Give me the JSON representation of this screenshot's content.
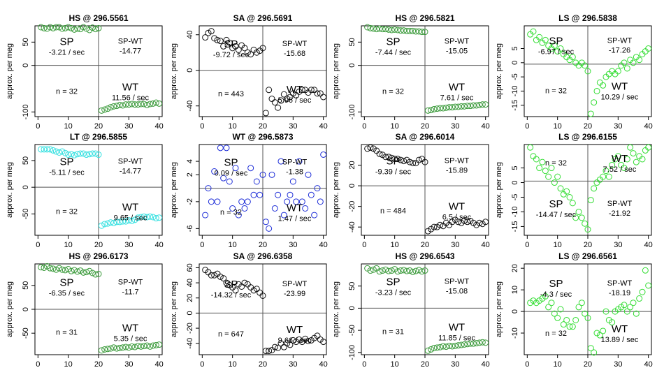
{
  "figure": {
    "ylabel": "approx. per meg"
  },
  "colors": {
    "green": "#3a9a3a",
    "cyan": "#33e0e0",
    "blue": "#1f2fd8",
    "black": "#111111",
    "lightgreen": "#33dd33",
    "axis": "#000000",
    "line": "#555555"
  },
  "chart_data": [
    {
      "type": "scatter",
      "title": "HS @ 296.5561",
      "color": "green",
      "ylim": [
        -110,
        85
      ],
      "xlim": [
        -1,
        41
      ],
      "yticks": [
        50,
        0,
        -100
      ],
      "xticks": [
        0,
        10,
        20,
        30,
        40
      ],
      "split_y": 0,
      "sp_label": "SP",
      "sp_rate": "-3.21 / sec",
      "spwt_label": "SP-WT",
      "spwt_value": "-14.77",
      "wt_label": "WT",
      "wt_rate": "11.56 / sec",
      "n_label": "n = 32",
      "sp_y": [
        82,
        80,
        79,
        82,
        80,
        82,
        82,
        79,
        80,
        82,
        80,
        77,
        79,
        78,
        82,
        79,
        76,
        81,
        78,
        80
      ],
      "wt_y": [
        -97,
        -95,
        -93,
        -90,
        -88,
        -87,
        -85,
        -86,
        -84,
        -84,
        -83,
        -84,
        -84,
        -83,
        -83,
        -85,
        -83,
        -82,
        -80,
        -82
      ]
    },
    {
      "type": "scatter",
      "title": "SA @ 296.5691",
      "color": "black",
      "ylim": [
        -52,
        50
      ],
      "xlim": [
        -1,
        41
      ],
      "yticks": [
        40,
        0,
        -40
      ],
      "xticks": [
        0,
        10,
        20,
        30,
        40
      ],
      "split_y": 0,
      "sp_label": "SP",
      "sp_rate": "-9.72 / sec",
      "spwt_label": "SP-WT",
      "spwt_value": "-15.68",
      "wt_label": "WT",
      "wt_rate": "5.96 / sec",
      "n_label": "n = 443",
      "sp_y": [
        37,
        42,
        44,
        36,
        34,
        33,
        27,
        34,
        31,
        25,
        27,
        23,
        28,
        25,
        20,
        18,
        23,
        20,
        22,
        25
      ],
      "wt_y": [
        -48,
        -22,
        -32,
        -36,
        -42,
        -34,
        -27,
        -32,
        -30,
        -26,
        -28,
        -24,
        -22,
        -22,
        -25,
        -22,
        -22,
        -26,
        -26,
        -30
      ]
    },
    {
      "type": "scatter",
      "title": "HS @ 296.5821",
      "color": "green",
      "ylim": [
        -110,
        85
      ],
      "xlim": [
        -1,
        41
      ],
      "yticks": [
        50,
        0,
        -100
      ],
      "xticks": [
        0,
        10,
        20,
        30,
        40
      ],
      "split_y": 0,
      "sp_label": "SP",
      "sp_rate": "-7.44 / sec",
      "spwt_label": "SP-WT",
      "spwt_value": "-15.05",
      "wt_label": "WT",
      "wt_rate": "7.61 / sec",
      "n_label": "n = 32",
      "sp_y": [
        82,
        80,
        79,
        78,
        79,
        78,
        78,
        77,
        76,
        77,
        76,
        75,
        75,
        74,
        74,
        74,
        73,
        73,
        72,
        72
      ],
      "wt_y": [
        -97,
        -96,
        -94,
        -93,
        -92,
        -92,
        -91,
        -90,
        -90,
        -89,
        -89,
        -88,
        -88,
        -87,
        -87,
        -86,
        -86,
        -85,
        -84,
        -84
      ]
    },
    {
      "type": "scatter",
      "title": "LS @ 296.5838",
      "color": "lightgreen",
      "ylim": [
        -19,
        13
      ],
      "xlim": [
        -1,
        41
      ],
      "yticks": [
        5,
        0,
        -5,
        -10,
        -15
      ],
      "xticks": [
        0,
        10,
        20,
        30,
        40
      ],
      "split_y": -0.5,
      "sp_label": "SP",
      "sp_rate": "-6.97 / sec",
      "spwt_label": "SP-WT",
      "spwt_value": "-17.26",
      "wt_label": "WT",
      "wt_rate": "10.29 / sec",
      "n_label": "n = 32",
      "sp_y": [
        10,
        11,
        8,
        9,
        7,
        8,
        6,
        5,
        6,
        4,
        5,
        3,
        2,
        1,
        2,
        0,
        -1,
        0,
        -1,
        -3
      ],
      "wt_y": [
        -18,
        -14,
        -10,
        -7,
        -8,
        -5,
        -4,
        -3,
        -4,
        -3,
        -1,
        0,
        -2,
        1,
        0,
        2,
        1,
        3,
        4,
        5
      ]
    },
    {
      "type": "scatter",
      "title": "LT @ 296.5855",
      "color": "cyan",
      "ylim": [
        -90,
        80
      ],
      "xlim": [
        -1,
        41
      ],
      "yticks": [
        50,
        0,
        -50
      ],
      "xticks": [
        0,
        10,
        20,
        30,
        40
      ],
      "split_y": 0,
      "sp_label": "SP",
      "sp_rate": "-5.11 / sec",
      "spwt_label": "SP-WT",
      "spwt_value": "-14.77",
      "wt_label": "WT",
      "wt_rate": "9.65 / sec",
      "n_label": "n = 32",
      "sp_y": [
        71,
        71,
        71,
        71,
        69,
        67,
        65,
        67,
        64,
        61,
        62,
        60,
        62,
        63,
        63,
        61,
        62,
        63,
        63,
        61
      ],
      "wt_y": [
        -72,
        -69,
        -68,
        -66,
        -67,
        -65,
        -65,
        -64,
        -64,
        -62,
        -63,
        -61,
        -57,
        -56,
        -55,
        -56,
        -55,
        -56,
        -58,
        -57
      ]
    },
    {
      "type": "scatter",
      "title": "WT @ 296.5873",
      "color": "blue",
      "ylim": [
        -7,
        6.5
      ],
      "xlim": [
        -1,
        41
      ],
      "yticks": [
        4,
        2,
        -2,
        -6
      ],
      "xticks": [
        0,
        10,
        20,
        30,
        40
      ],
      "split_y": 0,
      "sp_label": "SP",
      "sp_rate": "0.09 / sec",
      "spwt_label": "SP-WT",
      "spwt_value": "-1.38",
      "wt_label": "WT",
      "wt_rate": "1.47 / sec",
      "n_label": "n = 32",
      "sp_y": [
        -4,
        0,
        -2,
        2.5,
        -2,
        6,
        1.5,
        6,
        1,
        -3,
        3,
        -4,
        -2,
        -3,
        -2,
        3,
        -1,
        1,
        -1,
        2
      ],
      "wt_y": [
        -5,
        -6,
        2,
        -3,
        -1,
        4,
        -4,
        -2,
        -1,
        1,
        -2,
        4,
        -2,
        -3,
        2,
        -1,
        -4,
        0,
        -2,
        5
      ]
    },
    {
      "type": "scatter",
      "title": "SA @ 296.6014",
      "color": "black",
      "ylim": [
        -48,
        40
      ],
      "xlim": [
        -1,
        41
      ],
      "yticks": [
        20,
        0,
        -20,
        -40
      ],
      "xticks": [
        0,
        10,
        20,
        30,
        40
      ],
      "split_y": 0,
      "sp_label": "SP",
      "sp_rate": "-9.39 / sec",
      "spwt_label": "SP-WT",
      "spwt_value": "-15.89",
      "wt_label": "WT",
      "wt_rate": "6.5 / sec",
      "n_label": "n = 484",
      "sp_y": [
        36,
        37,
        36,
        34,
        31,
        30,
        28,
        28,
        27,
        26,
        26,
        25,
        24,
        25,
        23,
        22,
        22,
        25,
        26,
        23
      ],
      "wt_y": [
        -44,
        -42,
        -40,
        -40,
        -38,
        -39,
        -36,
        -38,
        -35,
        -33,
        -35,
        -36,
        -34,
        -35,
        -34,
        -36,
        -38,
        -36,
        -37,
        -35
      ]
    },
    {
      "type": "scatter",
      "title": "LS @ 296.6155",
      "color": "lightgreen",
      "ylim": [
        -18,
        13
      ],
      "xlim": [
        -1,
        41
      ],
      "yticks": [
        5,
        0,
        -5,
        -10,
        -15
      ],
      "xticks": [
        0,
        10,
        20,
        30,
        40
      ],
      "split_y": 0.5,
      "sp_label": "SP",
      "sp_rate": "-14.47 / sec",
      "spwt_label": "SP-WT",
      "spwt_value": "-21.92",
      "wt_label": "WT",
      "wt_rate": "7.52 / sec",
      "n_label": "n = 32",
      "sp_y": [
        12,
        9,
        8,
        5,
        7,
        4,
        2,
        5,
        0,
        2,
        -2,
        -4,
        -3,
        -5,
        -7,
        -12,
        -10,
        -12,
        -14,
        -16
      ],
      "wt_y": [
        -6,
        -2,
        0,
        1,
        2,
        4,
        2,
        6,
        8,
        9,
        6,
        5,
        8,
        12,
        10,
        7,
        9,
        8,
        11,
        12
      ]
    },
    {
      "type": "scatter",
      "title": "HS @ 296.6173",
      "color": "green",
      "ylim": [
        -95,
        95
      ],
      "xlim": [
        -1,
        41
      ],
      "yticks": [
        50,
        0,
        -50
      ],
      "xticks": [
        0,
        10,
        20,
        30,
        40
      ],
      "split_y": 0,
      "sp_label": "SP",
      "sp_rate": "-6.35 / sec",
      "spwt_label": "SP-WT",
      "spwt_value": "-11.7",
      "wt_label": "WT",
      "wt_rate": "5.35 / sec",
      "n_label": "n = 31",
      "sp_y": [
        88,
        87,
        90,
        86,
        85,
        83,
        86,
        83,
        82,
        84,
        80,
        82,
        79,
        81,
        77,
        78,
        80,
        76,
        73,
        74
      ],
      "wt_y": [
        -86,
        -84,
        -83,
        -82,
        -80,
        -82,
        -81,
        -80,
        -79,
        -80,
        -78,
        -79,
        -77,
        -78,
        -77,
        -76,
        -78,
        -76,
        -75,
        -74
      ]
    },
    {
      "type": "scatter",
      "title": "SA @ 296.6358",
      "color": "black",
      "ylim": [
        -55,
        65
      ],
      "xlim": [
        -1,
        41
      ],
      "yticks": [
        60,
        40,
        20,
        0,
        -20,
        -40
      ],
      "xticks": [
        0,
        10,
        20,
        30,
        40
      ],
      "split_y": 0,
      "sp_label": "SP",
      "sp_rate": "-14.32 / sec",
      "spwt_label": "SP-WT",
      "spwt_value": "-23.99",
      "wt_label": "WT",
      "wt_rate": "9.66 / sec",
      "n_label": "n = 647",
      "sp_y": [
        57,
        54,
        50,
        50,
        52,
        48,
        46,
        40,
        37,
        34,
        30,
        38,
        35,
        40,
        38,
        34,
        30,
        32,
        27,
        23
      ],
      "wt_y": [
        -50,
        -50,
        -49,
        -45,
        -46,
        -40,
        -45,
        -40,
        -42,
        -36,
        -38,
        -35,
        -38,
        -34,
        -37,
        -36,
        -33,
        -30,
        -35,
        -38
      ]
    },
    {
      "type": "scatter",
      "title": "HS @ 296.6543",
      "color": "green",
      "ylim": [
        -105,
        100
      ],
      "xlim": [
        -1,
        41
      ],
      "yticks": [
        50,
        0,
        -50,
        -100
      ],
      "xticks": [
        0,
        10,
        20,
        30,
        40
      ],
      "split_y": 0,
      "sp_label": "SP",
      "sp_rate": "-3.23 / sec",
      "spwt_label": "SP-WT",
      "spwt_value": "-15.08",
      "wt_label": "WT",
      "wt_rate": "11.85 / sec",
      "n_label": "n = 31",
      "sp_y": [
        90,
        85,
        87,
        90,
        83,
        85,
        87,
        84,
        85,
        88,
        83,
        85,
        86,
        84,
        85,
        82,
        84,
        86,
        83,
        85
      ],
      "wt_y": [
        -96,
        -93,
        -90,
        -89,
        -88,
        -86,
        -87,
        -85,
        -86,
        -85,
        -84,
        -83,
        -82,
        -81,
        -80,
        -80,
        -79,
        -78,
        -77,
        -78
      ]
    },
    {
      "type": "scatter",
      "title": "LS @ 296.6561",
      "color": "lightgreen",
      "ylim": [
        -20,
        22
      ],
      "xlim": [
        -1,
        41
      ],
      "yticks": [
        20,
        10,
        0,
        -10
      ],
      "xticks": [
        0,
        10,
        20,
        30,
        40
      ],
      "split_y": 0,
      "sp_label": "SP",
      "sp_rate": "-4.3 / sec",
      "spwt_label": "SP-WT",
      "spwt_value": "-18.19",
      "wt_label": "WT",
      "wt_rate": "13.89 / sec",
      "n_label": "n = 32",
      "sp_y": [
        4,
        5,
        4,
        5,
        6,
        7,
        2,
        4,
        -1,
        -3,
        1,
        -6,
        -4,
        -7,
        -7,
        -4,
        2,
        4,
        -1,
        -3
      ],
      "wt_y": [
        -17,
        -19,
        -10,
        -11,
        -9,
        0,
        -4,
        -5,
        0,
        1,
        2,
        3,
        0,
        2,
        4,
        -1,
        6,
        9,
        19,
        12
      ]
    }
  ]
}
